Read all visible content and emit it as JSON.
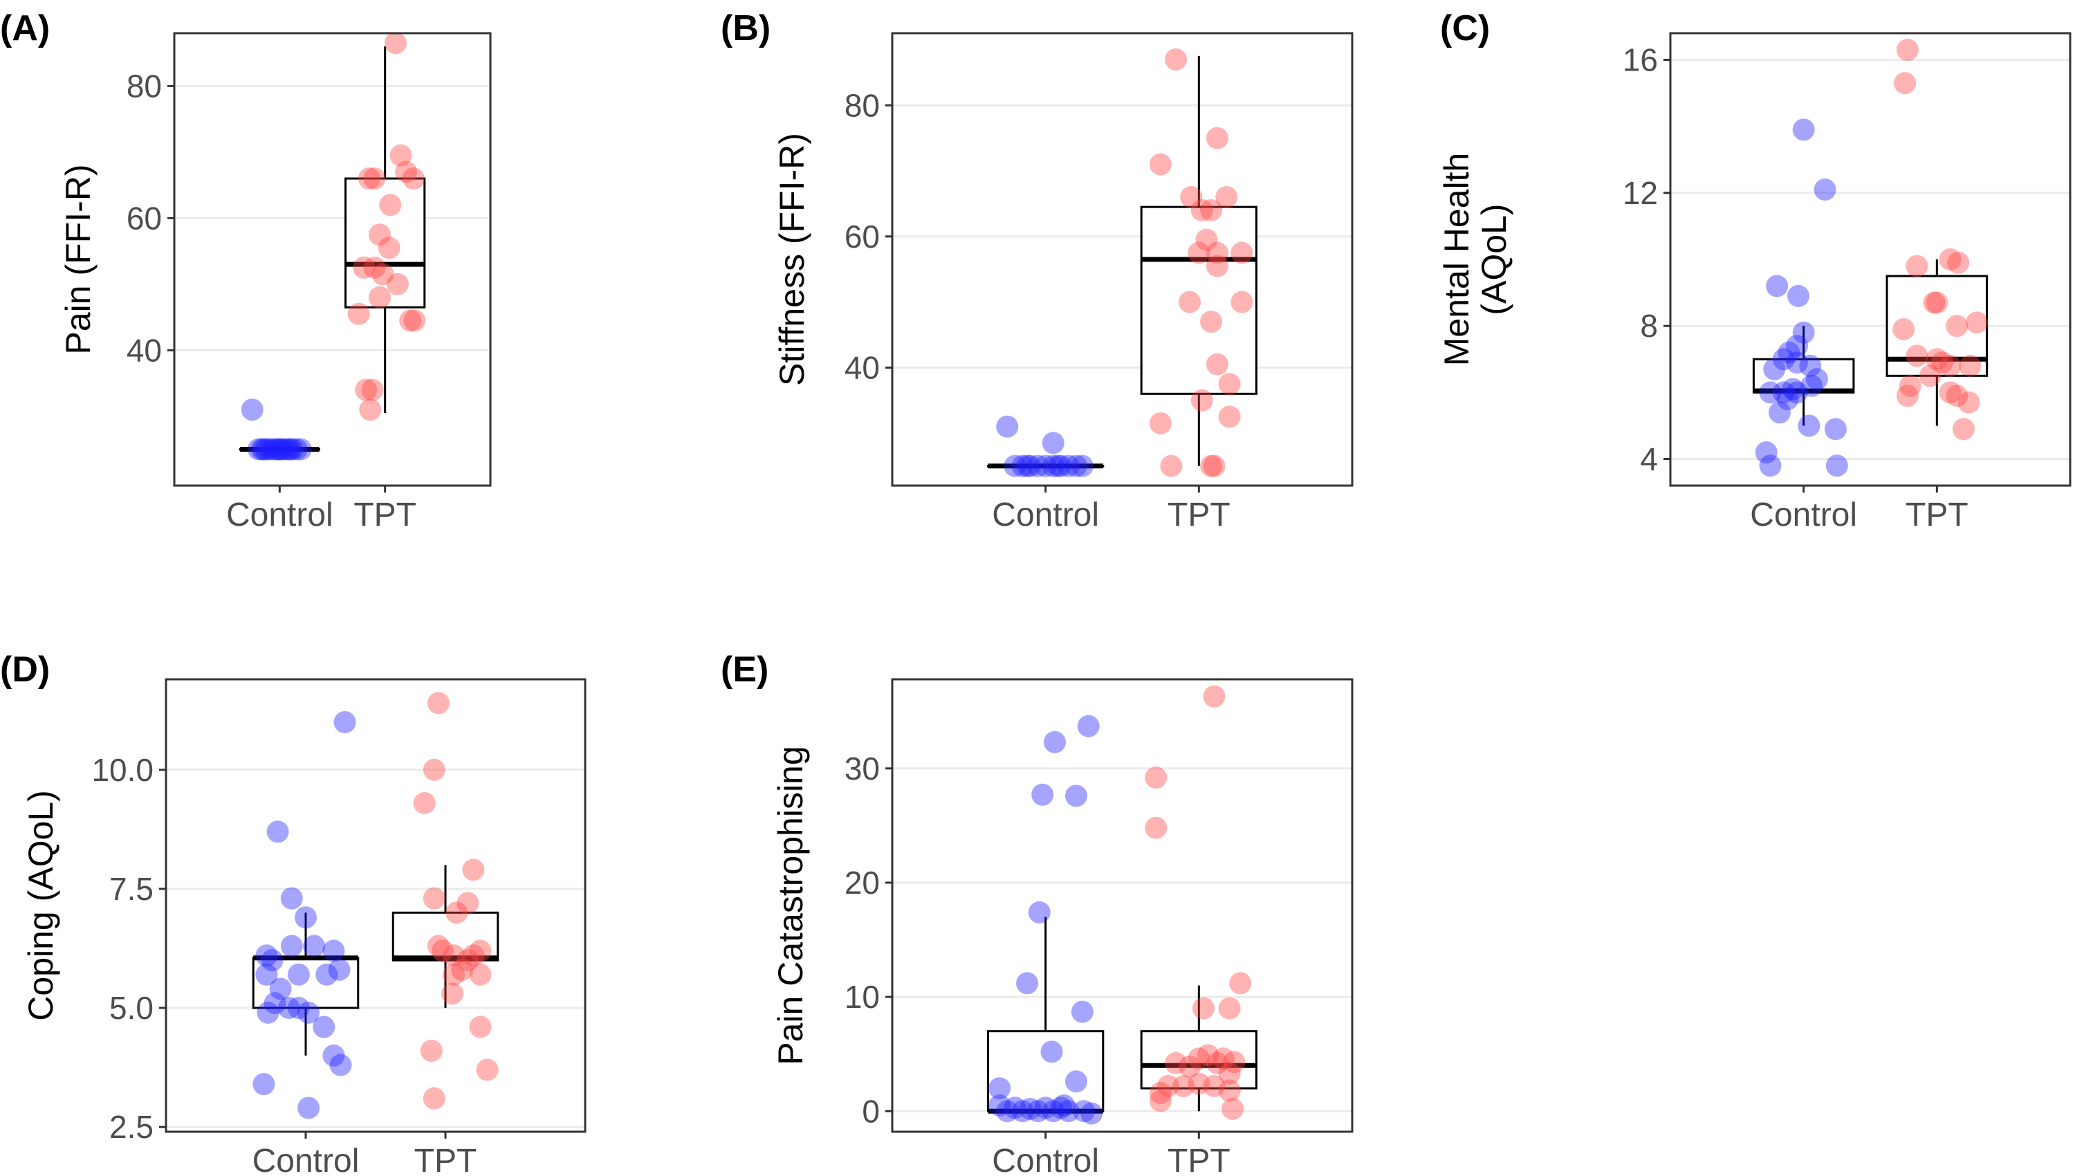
{
  "colors": {
    "Control": "#1f1fff",
    "TPT": "#ff4040"
  },
  "chart_data": [
    {
      "id": "A",
      "panel_label": "(A)",
      "type": "box+jitter",
      "ylabel": [
        "Pain (FFI-R)"
      ],
      "ylim": [
        19.5,
        88
      ],
      "yticks": [
        40,
        60,
        80
      ],
      "categories": [
        "Control",
        "TPT"
      ],
      "boxes": [
        {
          "group": "Control",
          "lower_whisker": 25,
          "q1": 25,
          "median": 25,
          "q3": 25,
          "upper_whisker": 25
        },
        {
          "group": "TPT",
          "lower_whisker": 30.5,
          "q1": 46.5,
          "median": 53,
          "q3": 66,
          "upper_whisker": 86
        }
      ],
      "points": {
        "Control": [
          [
            -0.2,
            25
          ],
          [
            -0.17,
            25
          ],
          [
            -0.13,
            25
          ],
          [
            -0.1,
            25
          ],
          [
            -0.07,
            25
          ],
          [
            -0.04,
            25
          ],
          [
            -0.01,
            25
          ],
          [
            0.02,
            25
          ],
          [
            0.05,
            25
          ],
          [
            0.08,
            25
          ],
          [
            0.12,
            25
          ],
          [
            0.16,
            25
          ],
          [
            0.2,
            25
          ],
          [
            -0.15,
            25
          ],
          [
            0.0,
            25
          ],
          [
            0.1,
            25
          ],
          [
            -0.26,
            31
          ]
        ],
        "TPT": [
          [
            0.1,
            86.5
          ],
          [
            0.15,
            69.5
          ],
          [
            0.2,
            67
          ],
          [
            0.27,
            66
          ],
          [
            -0.15,
            66
          ],
          [
            -0.1,
            66
          ],
          [
            -0.05,
            57.5
          ],
          [
            0.04,
            55.5
          ],
          [
            -0.2,
            52.5
          ],
          [
            -0.1,
            52.5
          ],
          [
            -0.02,
            51.5
          ],
          [
            0.12,
            50
          ],
          [
            -0.05,
            48
          ],
          [
            0.24,
            44.5
          ],
          [
            0.28,
            44.5
          ],
          [
            -0.25,
            45.5
          ],
          [
            -0.18,
            34
          ],
          [
            -0.12,
            34
          ],
          [
            -0.14,
            31
          ],
          [
            0.05,
            62
          ]
        ]
      }
    },
    {
      "id": "B",
      "panel_label": "(B)",
      "type": "box+jitter",
      "ylabel": [
        "Stiffness (FFI-R)"
      ],
      "ylim": [
        22,
        91
      ],
      "yticks": [
        40,
        60,
        80
      ],
      "categories": [
        "Control",
        "TPT"
      ],
      "boxes": [
        {
          "group": "Control",
          "lower_whisker": 25,
          "q1": 25,
          "median": 25,
          "q3": 25,
          "upper_whisker": 25
        },
        {
          "group": "TPT",
          "lower_whisker": 25,
          "q1": 36,
          "median": 56.5,
          "q3": 64.5,
          "upper_whisker": 87.5
        }
      ],
      "points": {
        "Control": [
          [
            -0.25,
            31
          ],
          [
            0.05,
            28.5
          ],
          [
            -0.2,
            25
          ],
          [
            -0.15,
            25
          ],
          [
            -0.1,
            25
          ],
          [
            -0.05,
            25
          ],
          [
            0.0,
            25
          ],
          [
            0.05,
            25
          ],
          [
            0.1,
            25
          ],
          [
            0.15,
            25
          ],
          [
            0.2,
            25
          ],
          [
            -0.12,
            25
          ],
          [
            0.08,
            25
          ],
          [
            0.24,
            25
          ]
        ],
        "TPT": [
          [
            -0.15,
            87
          ],
          [
            0.12,
            75
          ],
          [
            -0.25,
            71
          ],
          [
            -0.05,
            66
          ],
          [
            0.18,
            66
          ],
          [
            0.02,
            64
          ],
          [
            0.08,
            64
          ],
          [
            0.05,
            59.5
          ],
          [
            0.0,
            57.5
          ],
          [
            0.12,
            57.5
          ],
          [
            0.28,
            57.5
          ],
          [
            0.12,
            55.5
          ],
          [
            0.28,
            50
          ],
          [
            -0.06,
            50
          ],
          [
            0.08,
            47
          ],
          [
            0.12,
            40.5
          ],
          [
            0.2,
            37.5
          ],
          [
            -0.25,
            31.5
          ],
          [
            0.2,
            32.5
          ],
          [
            0.02,
            35
          ],
          [
            -0.18,
            25
          ],
          [
            0.08,
            25
          ],
          [
            0.1,
            25
          ]
        ]
      }
    },
    {
      "id": "C",
      "panel_label": "(C)",
      "type": "box+jitter",
      "ylabel": [
        "Mental Health",
        "(AQoL)"
      ],
      "ylim": [
        3.2,
        16.8
      ],
      "yticks": [
        4,
        8,
        12,
        16
      ],
      "categories": [
        "Control",
        "TPT"
      ],
      "boxes": [
        {
          "group": "Control",
          "lower_whisker": 5,
          "q1": 6,
          "median": 6.05,
          "q3": 7,
          "upper_whisker": 8
        },
        {
          "group": "TPT",
          "lower_whisker": 5,
          "q1": 6.5,
          "median": 7,
          "q3": 9.5,
          "upper_whisker": 10
        }
      ],
      "points": {
        "Control": [
          [
            0.0,
            13.9
          ],
          [
            0.16,
            12.1
          ],
          [
            -0.2,
            9.2
          ],
          [
            -0.04,
            8.9
          ],
          [
            0.0,
            7.8
          ],
          [
            -0.05,
            7.4
          ],
          [
            -0.11,
            7.2
          ],
          [
            -0.15,
            7.0
          ],
          [
            -0.22,
            6.7
          ],
          [
            -0.05,
            6.9
          ],
          [
            0.05,
            6.8
          ],
          [
            -0.08,
            6.1
          ],
          [
            -0.25,
            6.0
          ],
          [
            -0.15,
            6.0
          ],
          [
            -0.05,
            6.0
          ],
          [
            0.06,
            6.2
          ],
          [
            0.1,
            6.4
          ],
          [
            -0.12,
            5.8
          ],
          [
            -0.18,
            5.4
          ],
          [
            0.04,
            5.0
          ],
          [
            0.24,
            4.9
          ],
          [
            -0.28,
            4.2
          ],
          [
            -0.25,
            3.8
          ],
          [
            0.25,
            3.8
          ]
        ],
        "TPT": [
          [
            -0.22,
            16.3
          ],
          [
            -0.24,
            15.3
          ],
          [
            -0.15,
            9.8
          ],
          [
            0.1,
            10.0
          ],
          [
            0.16,
            9.9
          ],
          [
            -0.25,
            7.9
          ],
          [
            0.15,
            8.0
          ],
          [
            0.3,
            8.1
          ],
          [
            -0.02,
            8.7
          ],
          [
            0.0,
            8.7
          ],
          [
            -0.15,
            7.1
          ],
          [
            0.0,
            7.0
          ],
          [
            0.04,
            6.9
          ],
          [
            0.1,
            6.8
          ],
          [
            0.25,
            6.8
          ],
          [
            -0.22,
            5.9
          ],
          [
            0.1,
            6.0
          ],
          [
            0.15,
            5.9
          ],
          [
            0.24,
            5.7
          ],
          [
            -0.05,
            6.5
          ],
          [
            0.2,
            4.9
          ],
          [
            -0.2,
            6.2
          ]
        ]
      }
    },
    {
      "id": "D",
      "panel_label": "(D)",
      "type": "box+jitter",
      "ylabel": [
        "Coping (AQoL)"
      ],
      "ylim": [
        2.4,
        11.9
      ],
      "yticks": [
        2.5,
        5.0,
        7.5,
        10.0
      ],
      "ytick_labels": [
        "2.5",
        "5.0",
        "7.5",
        "10.0"
      ],
      "categories": [
        "Control",
        "TPT"
      ],
      "boxes": [
        {
          "group": "Control",
          "lower_whisker": 4,
          "q1": 5,
          "median": 6.05,
          "q3": 6.05,
          "upper_whisker": 7
        },
        {
          "group": "TPT",
          "lower_whisker": 5,
          "q1": 6,
          "median": 6.05,
          "q3": 7,
          "upper_whisker": 8
        }
      ],
      "points": {
        "Control": [
          [
            0.28,
            11.0
          ],
          [
            -0.2,
            8.7
          ],
          [
            -0.1,
            7.3
          ],
          [
            0.0,
            6.9
          ],
          [
            -0.28,
            6.1
          ],
          [
            -0.24,
            6.0
          ],
          [
            -0.1,
            6.3
          ],
          [
            0.06,
            6.3
          ],
          [
            0.2,
            6.2
          ],
          [
            0.24,
            5.8
          ],
          [
            -0.28,
            5.7
          ],
          [
            -0.05,
            5.7
          ],
          [
            0.15,
            5.7
          ],
          [
            -0.18,
            5.4
          ],
          [
            -0.22,
            5.1
          ],
          [
            -0.27,
            4.9
          ],
          [
            -0.12,
            5.0
          ],
          [
            -0.05,
            5.0
          ],
          [
            0.02,
            4.9
          ],
          [
            0.13,
            4.6
          ],
          [
            0.2,
            4.0
          ],
          [
            0.25,
            3.8
          ],
          [
            -0.3,
            3.4
          ],
          [
            0.02,
            2.9
          ]
        ],
        "TPT": [
          [
            -0.05,
            11.4
          ],
          [
            -0.08,
            10.0
          ],
          [
            -0.15,
            9.3
          ],
          [
            0.2,
            7.9
          ],
          [
            -0.08,
            7.3
          ],
          [
            -0.05,
            6.3
          ],
          [
            0.08,
            7.0
          ],
          [
            0.16,
            7.2
          ],
          [
            -0.02,
            6.2
          ],
          [
            0.06,
            6.1
          ],
          [
            0.2,
            6.1
          ],
          [
            0.25,
            6.2
          ],
          [
            0.06,
            5.7
          ],
          [
            0.12,
            5.8
          ],
          [
            0.16,
            6.0
          ],
          [
            0.25,
            5.7
          ],
          [
            0.05,
            5.3
          ],
          [
            0.25,
            4.6
          ],
          [
            -0.1,
            4.1
          ],
          [
            0.3,
            3.7
          ],
          [
            -0.08,
            3.1
          ]
        ]
      }
    },
    {
      "id": "E",
      "panel_label": "(E)",
      "type": "box+jitter",
      "ylabel": [
        "Pain Catastrophising"
      ],
      "ylim": [
        -1.8,
        37.8
      ],
      "yticks": [
        0,
        10,
        20,
        30
      ],
      "categories": [
        "Control",
        "TPT"
      ],
      "boxes": [
        {
          "group": "Control",
          "lower_whisker": 0,
          "q1": 0,
          "median": 0,
          "q3": 7,
          "upper_whisker": 17
        },
        {
          "group": "TPT",
          "lower_whisker": 0,
          "q1": 2,
          "median": 4,
          "q3": 7,
          "upper_whisker": 11
        }
      ],
      "points": {
        "Control": [
          [
            0.28,
            33.7
          ],
          [
            0.06,
            32.3
          ],
          [
            -0.02,
            27.7
          ],
          [
            0.2,
            27.6
          ],
          [
            -0.04,
            17.4
          ],
          [
            -0.12,
            11.2
          ],
          [
            0.24,
            8.7
          ],
          [
            0.04,
            5.2
          ],
          [
            -0.3,
            2.0
          ],
          [
            0.2,
            2.6
          ],
          [
            -0.3,
            0.5
          ],
          [
            -0.2,
            0.3
          ],
          [
            -0.1,
            0.2
          ],
          [
            0.0,
            0.3
          ],
          [
            0.1,
            0.3
          ],
          [
            -0.25,
            0.0
          ],
          [
            -0.15,
            0.0
          ],
          [
            -0.05,
            0.0
          ],
          [
            0.05,
            0.0
          ],
          [
            0.15,
            0.0
          ],
          [
            0.25,
            0.0
          ],
          [
            0.3,
            -0.2
          ],
          [
            0.12,
            0.5
          ]
        ],
        "TPT": [
          [
            0.1,
            36.3
          ],
          [
            -0.28,
            29.2
          ],
          [
            -0.28,
            24.8
          ],
          [
            0.27,
            11.2
          ],
          [
            0.03,
            9.0
          ],
          [
            0.2,
            9.0
          ],
          [
            -0.25,
            1.6
          ],
          [
            -0.25,
            0.9
          ],
          [
            -0.15,
            4.2
          ],
          [
            -0.06,
            3.9
          ],
          [
            0.0,
            4.6
          ],
          [
            0.06,
            4.9
          ],
          [
            0.12,
            4.2
          ],
          [
            0.16,
            4.6
          ],
          [
            0.23,
            4.3
          ],
          [
            -0.1,
            2.2
          ],
          [
            0.0,
            2.4
          ],
          [
            0.1,
            2.2
          ],
          [
            0.2,
            1.8
          ],
          [
            -0.2,
            2.2
          ],
          [
            0.22,
            0.2
          ],
          [
            0.2,
            3.3
          ]
        ]
      }
    }
  ]
}
